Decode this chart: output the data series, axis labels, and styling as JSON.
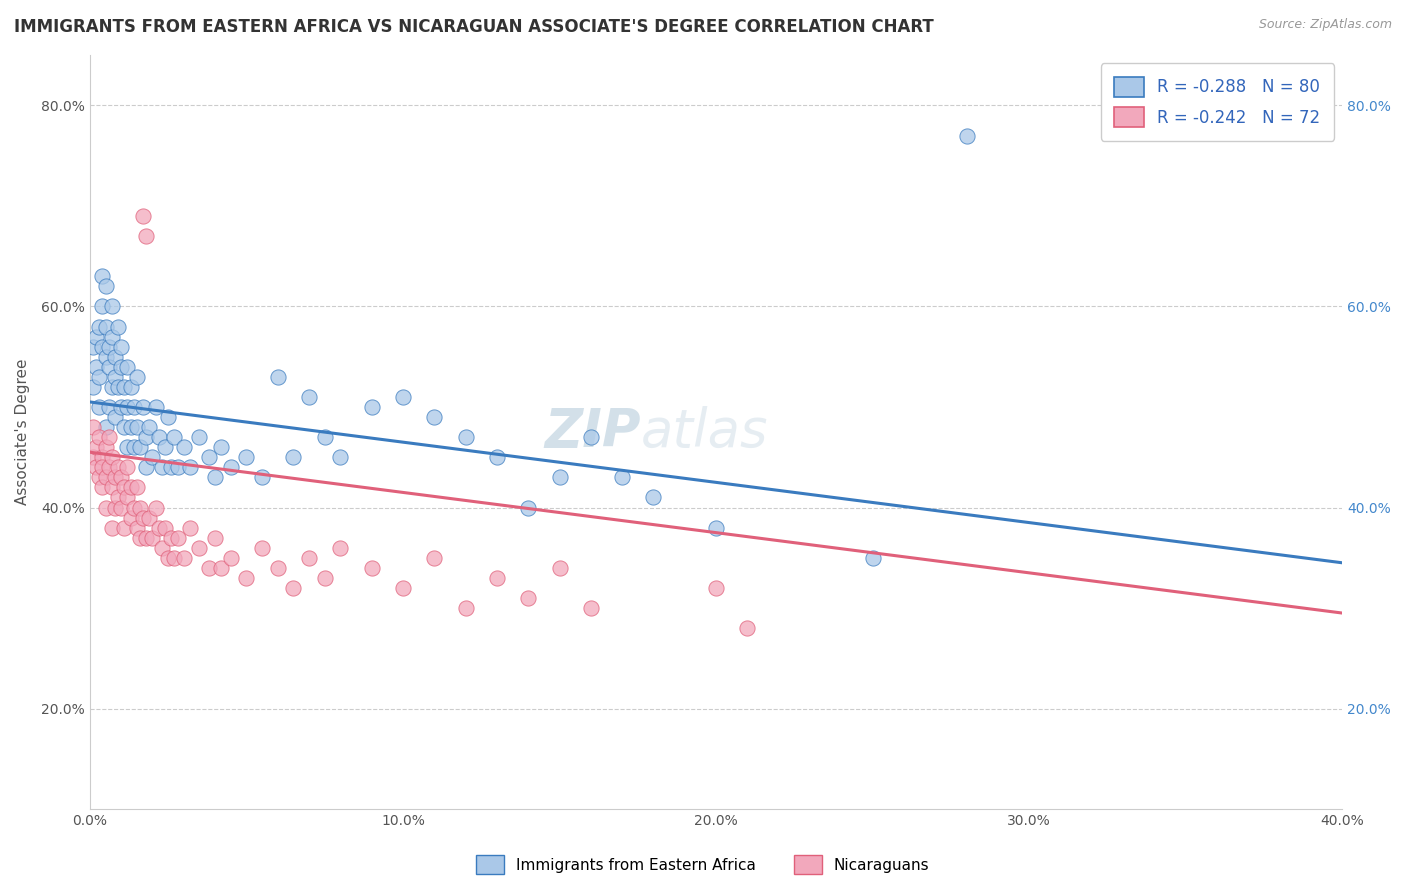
{
  "title": "IMMIGRANTS FROM EASTERN AFRICA VS NICARAGUAN ASSOCIATE'S DEGREE CORRELATION CHART",
  "source_text": "Source: ZipAtlas.com",
  "ylabel": "Associate's Degree",
  "xmin": 0.0,
  "xmax": 0.4,
  "ymin": 0.1,
  "ymax": 0.85,
  "ytick_labels": [
    "20.0%",
    "40.0%",
    "60.0%",
    "80.0%"
  ],
  "ytick_values": [
    0.2,
    0.4,
    0.6,
    0.8
  ],
  "xtick_labels": [
    "0.0%",
    "",
    "",
    "",
    "",
    "10.0%",
    "",
    "",
    "",
    "",
    "20.0%",
    "",
    "",
    "",
    "",
    "30.0%",
    "",
    "",
    "",
    "",
    "40.0%"
  ],
  "xtick_values": [
    0.0,
    0.02,
    0.04,
    0.06,
    0.08,
    0.1,
    0.12,
    0.14,
    0.16,
    0.18,
    0.2,
    0.22,
    0.24,
    0.26,
    0.28,
    0.3,
    0.32,
    0.34,
    0.36,
    0.38,
    0.4
  ],
  "legend_r1": "R = -0.288   N = 80",
  "legend_r2": "R = -0.242   N = 72",
  "legend_label1": "Immigrants from Eastern Africa",
  "legend_label2": "Nicaraguans",
  "color_blue": "#aac8e8",
  "color_pink": "#f2a8bc",
  "line_color_blue": "#3a7bbf",
  "line_color_pink": "#e0607a",
  "watermark_zip": "ZIP",
  "watermark_atlas": "atlas",
  "blue_scatter": [
    [
      0.001,
      0.52
    ],
    [
      0.001,
      0.56
    ],
    [
      0.002,
      0.54
    ],
    [
      0.002,
      0.57
    ],
    [
      0.003,
      0.5
    ],
    [
      0.003,
      0.53
    ],
    [
      0.003,
      0.58
    ],
    [
      0.004,
      0.56
    ],
    [
      0.004,
      0.6
    ],
    [
      0.004,
      0.63
    ],
    [
      0.005,
      0.55
    ],
    [
      0.005,
      0.58
    ],
    [
      0.005,
      0.62
    ],
    [
      0.005,
      0.48
    ],
    [
      0.006,
      0.56
    ],
    [
      0.006,
      0.5
    ],
    [
      0.006,
      0.54
    ],
    [
      0.007,
      0.52
    ],
    [
      0.007,
      0.57
    ],
    [
      0.007,
      0.6
    ],
    [
      0.008,
      0.55
    ],
    [
      0.008,
      0.49
    ],
    [
      0.008,
      0.53
    ],
    [
      0.009,
      0.58
    ],
    [
      0.009,
      0.52
    ],
    [
      0.01,
      0.56
    ],
    [
      0.01,
      0.5
    ],
    [
      0.01,
      0.54
    ],
    [
      0.011,
      0.48
    ],
    [
      0.011,
      0.52
    ],
    [
      0.012,
      0.5
    ],
    [
      0.012,
      0.46
    ],
    [
      0.012,
      0.54
    ],
    [
      0.013,
      0.48
    ],
    [
      0.013,
      0.52
    ],
    [
      0.014,
      0.5
    ],
    [
      0.014,
      0.46
    ],
    [
      0.015,
      0.48
    ],
    [
      0.015,
      0.53
    ],
    [
      0.016,
      0.46
    ],
    [
      0.017,
      0.5
    ],
    [
      0.018,
      0.47
    ],
    [
      0.018,
      0.44
    ],
    [
      0.019,
      0.48
    ],
    [
      0.02,
      0.45
    ],
    [
      0.021,
      0.5
    ],
    [
      0.022,
      0.47
    ],
    [
      0.023,
      0.44
    ],
    [
      0.024,
      0.46
    ],
    [
      0.025,
      0.49
    ],
    [
      0.026,
      0.44
    ],
    [
      0.027,
      0.47
    ],
    [
      0.028,
      0.44
    ],
    [
      0.03,
      0.46
    ],
    [
      0.032,
      0.44
    ],
    [
      0.035,
      0.47
    ],
    [
      0.038,
      0.45
    ],
    [
      0.04,
      0.43
    ],
    [
      0.042,
      0.46
    ],
    [
      0.045,
      0.44
    ],
    [
      0.05,
      0.45
    ],
    [
      0.055,
      0.43
    ],
    [
      0.06,
      0.53
    ],
    [
      0.065,
      0.45
    ],
    [
      0.07,
      0.51
    ],
    [
      0.075,
      0.47
    ],
    [
      0.08,
      0.45
    ],
    [
      0.09,
      0.5
    ],
    [
      0.1,
      0.51
    ],
    [
      0.11,
      0.49
    ],
    [
      0.12,
      0.47
    ],
    [
      0.13,
      0.45
    ],
    [
      0.14,
      0.4
    ],
    [
      0.15,
      0.43
    ],
    [
      0.16,
      0.47
    ],
    [
      0.17,
      0.43
    ],
    [
      0.18,
      0.41
    ],
    [
      0.2,
      0.38
    ],
    [
      0.25,
      0.35
    ],
    [
      0.28,
      0.77
    ]
  ],
  "pink_scatter": [
    [
      0.001,
      0.45
    ],
    [
      0.001,
      0.48
    ],
    [
      0.002,
      0.46
    ],
    [
      0.002,
      0.44
    ],
    [
      0.003,
      0.43
    ],
    [
      0.003,
      0.47
    ],
    [
      0.004,
      0.45
    ],
    [
      0.004,
      0.42
    ],
    [
      0.004,
      0.44
    ],
    [
      0.005,
      0.46
    ],
    [
      0.005,
      0.43
    ],
    [
      0.005,
      0.4
    ],
    [
      0.006,
      0.44
    ],
    [
      0.006,
      0.47
    ],
    [
      0.007,
      0.45
    ],
    [
      0.007,
      0.42
    ],
    [
      0.007,
      0.38
    ],
    [
      0.008,
      0.43
    ],
    [
      0.008,
      0.4
    ],
    [
      0.009,
      0.44
    ],
    [
      0.009,
      0.41
    ],
    [
      0.01,
      0.43
    ],
    [
      0.01,
      0.4
    ],
    [
      0.011,
      0.42
    ],
    [
      0.011,
      0.38
    ],
    [
      0.012,
      0.41
    ],
    [
      0.012,
      0.44
    ],
    [
      0.013,
      0.39
    ],
    [
      0.013,
      0.42
    ],
    [
      0.014,
      0.4
    ],
    [
      0.015,
      0.38
    ],
    [
      0.015,
      0.42
    ],
    [
      0.016,
      0.4
    ],
    [
      0.016,
      0.37
    ],
    [
      0.017,
      0.39
    ],
    [
      0.017,
      0.69
    ],
    [
      0.018,
      0.67
    ],
    [
      0.018,
      0.37
    ],
    [
      0.019,
      0.39
    ],
    [
      0.02,
      0.37
    ],
    [
      0.021,
      0.4
    ],
    [
      0.022,
      0.38
    ],
    [
      0.023,
      0.36
    ],
    [
      0.024,
      0.38
    ],
    [
      0.025,
      0.35
    ],
    [
      0.026,
      0.37
    ],
    [
      0.027,
      0.35
    ],
    [
      0.028,
      0.37
    ],
    [
      0.03,
      0.35
    ],
    [
      0.032,
      0.38
    ],
    [
      0.035,
      0.36
    ],
    [
      0.038,
      0.34
    ],
    [
      0.04,
      0.37
    ],
    [
      0.042,
      0.34
    ],
    [
      0.045,
      0.35
    ],
    [
      0.05,
      0.33
    ],
    [
      0.055,
      0.36
    ],
    [
      0.06,
      0.34
    ],
    [
      0.065,
      0.32
    ],
    [
      0.07,
      0.35
    ],
    [
      0.075,
      0.33
    ],
    [
      0.08,
      0.36
    ],
    [
      0.09,
      0.34
    ],
    [
      0.1,
      0.32
    ],
    [
      0.11,
      0.35
    ],
    [
      0.12,
      0.3
    ],
    [
      0.13,
      0.33
    ],
    [
      0.14,
      0.31
    ],
    [
      0.15,
      0.34
    ],
    [
      0.16,
      0.3
    ],
    [
      0.2,
      0.32
    ],
    [
      0.21,
      0.28
    ]
  ],
  "blue_line": [
    [
      0.0,
      0.505
    ],
    [
      0.4,
      0.345
    ]
  ],
  "pink_line": [
    [
      0.0,
      0.455
    ],
    [
      0.4,
      0.295
    ]
  ]
}
